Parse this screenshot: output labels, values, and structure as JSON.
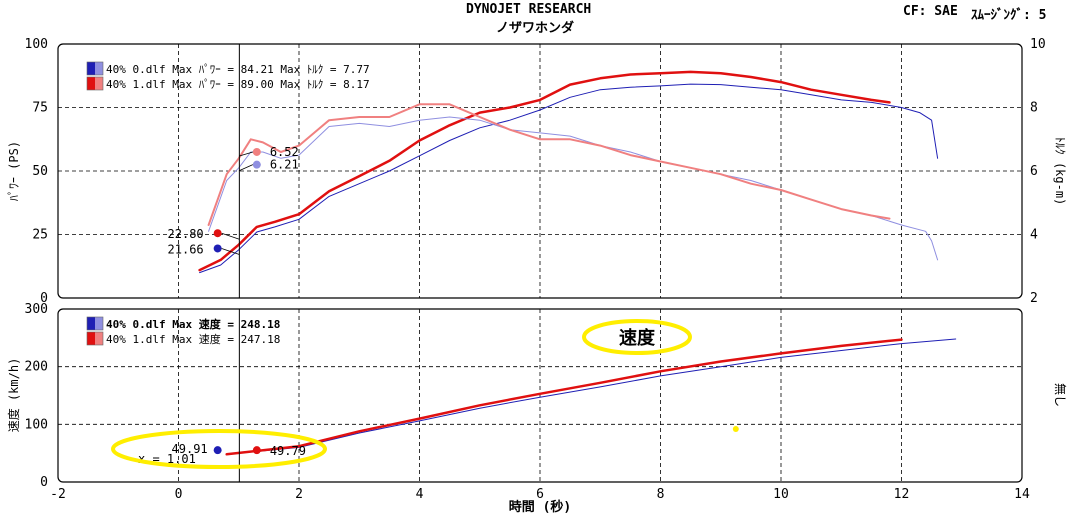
{
  "header": {
    "title": "DYNOJET  RESEARCH",
    "subtitle": "ノザワホンダ",
    "correction": "CF: SAE",
    "smoothing": "ｽﾑｰｼﾞﾝｸﾞ: 5"
  },
  "colors": {
    "run0_dark": "#1f1fb4",
    "run0_light": "#8f8fe0",
    "run1_dark": "#e01010",
    "run1_light": "#f08080",
    "highlight": "#ffee00"
  },
  "chart_data": [
    {
      "type": "line",
      "xlim": [
        -2,
        14
      ],
      "ylim": [
        0,
        100
      ],
      "y2lim": [
        2,
        10
      ],
      "ylabel": "ﾊﾟﾜｰ (PS)",
      "y2label": "ﾄﾙｸ (kg-m)",
      "y_ticks": [
        "0",
        "25",
        "50",
        "75",
        "100"
      ],
      "y2_ticks": [
        "2",
        "4",
        "6",
        "8",
        "10"
      ],
      "cursor_x": 1.01,
      "legend": [
        {
          "text": "40% 0.dlf Max ﾊﾟﾜｰ = 84.21  Max ﾄﾙｸ = 7.77",
          "color_key": "run0"
        },
        {
          "text": "40% 1.dlf Max ﾊﾟﾜｰ = 89.00  Max ﾄﾙｸ = 8.17",
          "color_key": "run1"
        }
      ],
      "readouts": [
        {
          "label": "6.52",
          "x": 1.3,
          "y": 57.5,
          "color": "#f08080",
          "side": "right"
        },
        {
          "label": "6.21",
          "x": 1.3,
          "y": 52.5,
          "color": "#8f8fe0",
          "side": "right"
        },
        {
          "label": "22.80",
          "x": 0.65,
          "y": 25.5,
          "color": "#e01010",
          "side": "left"
        },
        {
          "label": "21.66",
          "x": 0.65,
          "y": 19.5,
          "color": "#1f1fb4",
          "side": "left"
        }
      ],
      "series": [
        {
          "name": "40% 0.dlf ﾊﾟﾜｰ",
          "axis": "left",
          "color": "#1f1fb4",
          "width": 1,
          "points": [
            [
              0.35,
              10
            ],
            [
              0.7,
              13
            ],
            [
              1.0,
              19
            ],
            [
              1.3,
              26
            ],
            [
              1.6,
              28
            ],
            [
              2.0,
              31
            ],
            [
              2.5,
              40
            ],
            [
              3.0,
              45
            ],
            [
              3.5,
              50
            ],
            [
              4.0,
              56
            ],
            [
              4.5,
              62
            ],
            [
              5.0,
              67
            ],
            [
              5.5,
              70
            ],
            [
              6.0,
              74
            ],
            [
              6.5,
              79
            ],
            [
              7.0,
              82
            ],
            [
              7.5,
              83
            ],
            [
              8.0,
              83.5
            ],
            [
              8.5,
              84.2
            ],
            [
              9.0,
              84
            ],
            [
              9.5,
              83
            ],
            [
              10.0,
              82
            ],
            [
              10.5,
              80
            ],
            [
              11.0,
              78
            ],
            [
              11.5,
              77
            ],
            [
              12.0,
              75
            ],
            [
              12.3,
              73
            ],
            [
              12.5,
              70
            ],
            [
              12.6,
              55
            ]
          ]
        },
        {
          "name": "40% 1.dlf ﾊﾟﾜｰ",
          "axis": "left",
          "color": "#e01010",
          "width": 2.5,
          "points": [
            [
              0.35,
              11
            ],
            [
              0.7,
              15
            ],
            [
              1.0,
              21
            ],
            [
              1.3,
              28
            ],
            [
              1.6,
              30
            ],
            [
              2.0,
              33
            ],
            [
              2.5,
              42
            ],
            [
              3.0,
              48
            ],
            [
              3.5,
              54
            ],
            [
              4.0,
              62
            ],
            [
              4.5,
              68
            ],
            [
              5.0,
              73
            ],
            [
              5.5,
              75
            ],
            [
              6.0,
              78
            ],
            [
              6.5,
              84
            ],
            [
              7.0,
              86.5
            ],
            [
              7.5,
              88
            ],
            [
              8.0,
              88.5
            ],
            [
              8.5,
              89
            ],
            [
              9.0,
              88.5
            ],
            [
              9.5,
              87
            ],
            [
              10.0,
              85
            ],
            [
              10.5,
              82
            ],
            [
              11.0,
              80
            ],
            [
              11.5,
              78
            ],
            [
              11.8,
              77
            ]
          ]
        },
        {
          "name": "40% 0.dlf ﾄﾙｸ",
          "axis": "right",
          "color": "#8f8fe0",
          "width": 1,
          "points": [
            [
              0.5,
              4.1
            ],
            [
              0.8,
              5.7
            ],
            [
              1.0,
              6.1
            ],
            [
              1.2,
              6.6
            ],
            [
              1.4,
              6.6
            ],
            [
              1.7,
              6.4
            ],
            [
              2.0,
              6.5
            ],
            [
              2.5,
              7.4
            ],
            [
              3.0,
              7.5
            ],
            [
              3.5,
              7.4
            ],
            [
              4.0,
              7.6
            ],
            [
              4.5,
              7.7
            ],
            [
              5.0,
              7.6
            ],
            [
              5.5,
              7.3
            ],
            [
              6.0,
              7.2
            ],
            [
              6.5,
              7.1
            ],
            [
              7.0,
              6.8
            ],
            [
              7.5,
              6.6
            ],
            [
              8.0,
              6.3
            ],
            [
              8.5,
              6.1
            ],
            [
              9.0,
              5.9
            ],
            [
              9.5,
              5.7
            ],
            [
              10.0,
              5.4
            ],
            [
              10.5,
              5.1
            ],
            [
              11.0,
              4.8
            ],
            [
              11.5,
              4.6
            ],
            [
              12.0,
              4.3
            ],
            [
              12.4,
              4.1
            ],
            [
              12.5,
              3.8
            ],
            [
              12.6,
              3.2
            ]
          ]
        },
        {
          "name": "40% 1.dlf ﾄﾙｸ",
          "axis": "right",
          "color": "#f08080",
          "width": 2,
          "points": [
            [
              0.5,
              4.3
            ],
            [
              0.8,
              5.9
            ],
            [
              1.0,
              6.4
            ],
            [
              1.2,
              7.0
            ],
            [
              1.4,
              6.9
            ],
            [
              1.7,
              6.6
            ],
            [
              2.0,
              6.8
            ],
            [
              2.5,
              7.6
            ],
            [
              3.0,
              7.7
            ],
            [
              3.5,
              7.7
            ],
            [
              4.0,
              8.1
            ],
            [
              4.5,
              8.1
            ],
            [
              5.0,
              7.7
            ],
            [
              5.5,
              7.3
            ],
            [
              6.0,
              7.0
            ],
            [
              6.5,
              7.0
            ],
            [
              7.0,
              6.8
            ],
            [
              7.5,
              6.5
            ],
            [
              8.0,
              6.3
            ],
            [
              8.5,
              6.1
            ],
            [
              9.0,
              5.9
            ],
            [
              9.5,
              5.6
            ],
            [
              10.0,
              5.4
            ],
            [
              10.5,
              5.1
            ],
            [
              11.0,
              4.8
            ],
            [
              11.5,
              4.6
            ],
            [
              11.8,
              4.5
            ]
          ]
        }
      ]
    },
    {
      "type": "line",
      "xlim": [
        -2,
        14
      ],
      "ylim": [
        0,
        300
      ],
      "ylabel": "速度 (km/h)",
      "xlabel": "時間 (秒)",
      "y2label": "無し",
      "x_ticks": [
        "-2",
        "0",
        "2",
        "4",
        "6",
        "8",
        "10",
        "12",
        "14"
      ],
      "y_ticks": [
        "0",
        "100",
        "200",
        "300"
      ],
      "cursor_x": 1.01,
      "legend": [
        {
          "text": "40% 0.dlf Max 速度 = 248.18",
          "color_key": "run0"
        },
        {
          "text": "40% 1.dlf Max 速度 = 247.18",
          "color_key": "run1"
        }
      ],
      "readouts": [
        {
          "label": "49.91",
          "x": 0.65,
          "y": 50,
          "color": "#1f1fb4",
          "side": "left"
        },
        {
          "label": "49.79",
          "x": 1.3,
          "y": 50,
          "color": "#e01010",
          "side": "right"
        }
      ],
      "cursor_label": "x = 1.01",
      "annotation": {
        "text": "速度",
        "x": 7.6,
        "y": 258
      },
      "stray_dot": {
        "x": 9.25,
        "y": 92
      },
      "series": [
        {
          "name": "40% 0.dlf 速度",
          "color": "#1f1fb4",
          "width": 1,
          "points": [
            [
              0.8,
              48
            ],
            [
              2.0,
              60
            ],
            [
              3.0,
              85
            ],
            [
              4.0,
              106
            ],
            [
              5.0,
              128
            ],
            [
              6.0,
              147
            ],
            [
              7.0,
              165
            ],
            [
              8.0,
              184
            ],
            [
              9.0,
              200
            ],
            [
              10.0,
              216
            ],
            [
              11.0,
              228
            ],
            [
              12.0,
              240
            ],
            [
              12.9,
              248
            ]
          ]
        },
        {
          "name": "40% 1.dlf 速度",
          "color": "#e01010",
          "width": 2.5,
          "points": [
            [
              0.8,
              48
            ],
            [
              2.0,
              62
            ],
            [
              3.0,
              88
            ],
            [
              4.0,
              110
            ],
            [
              5.0,
              133
            ],
            [
              6.0,
              153
            ],
            [
              7.0,
              172
            ],
            [
              8.0,
              192
            ],
            [
              9.0,
              209
            ],
            [
              10.0,
              223
            ],
            [
              11.0,
              236
            ],
            [
              12.0,
              247
            ]
          ]
        }
      ]
    }
  ]
}
